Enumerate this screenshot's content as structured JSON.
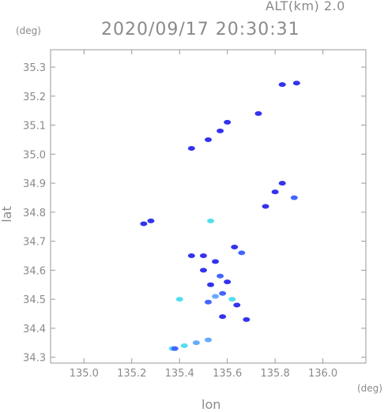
{
  "header": {
    "altitude_label": "ALT(km) 2.0",
    "datetime": "2020/09/17 20:30:31"
  },
  "axes": {
    "x_unit": "(deg)",
    "y_unit": "(deg)"
  },
  "colors": {
    "frame": "#9a9a9a",
    "echo_dark": "#3333ee",
    "echo_mid": "#4466ff",
    "echo_light": "#66aaff",
    "echo_cyan": "#55ddee"
  },
  "chart_data": {
    "type": "scatter",
    "title": "2020/09/17 20:30:31",
    "xlabel": "lon",
    "ylabel": "lat",
    "xlim": [
      134.86,
      136.18
    ],
    "ylim": [
      34.28,
      35.36
    ],
    "x_ticks": [
      135.0,
      135.2,
      135.4,
      135.6,
      135.8,
      136.0
    ],
    "x_tick_labels": [
      "135.0",
      "135.2",
      "135.4",
      "135.6",
      "135.8",
      "136.0"
    ],
    "y_ticks": [
      34.3,
      34.4,
      34.5,
      34.6,
      34.7,
      34.8,
      34.9,
      35.0,
      35.1,
      35.2,
      35.3
    ],
    "y_tick_labels": [
      "34.3",
      "34.4",
      "34.5",
      "34.6",
      "34.7",
      "34.8",
      "34.9",
      "35.0",
      "35.1",
      "35.2",
      "35.3"
    ],
    "grid": false,
    "echoes": [
      {
        "lon": 135.83,
        "lat": 35.24,
        "level": "dark"
      },
      {
        "lon": 135.89,
        "lat": 35.245,
        "level": "dark"
      },
      {
        "lon": 135.73,
        "lat": 35.14,
        "level": "dark"
      },
      {
        "lon": 135.6,
        "lat": 35.11,
        "level": "dark"
      },
      {
        "lon": 135.57,
        "lat": 35.08,
        "level": "dark"
      },
      {
        "lon": 135.52,
        "lat": 35.05,
        "level": "dark"
      },
      {
        "lon": 135.45,
        "lat": 35.02,
        "level": "dark"
      },
      {
        "lon": 135.83,
        "lat": 34.9,
        "level": "dark"
      },
      {
        "lon": 135.8,
        "lat": 34.87,
        "level": "dark"
      },
      {
        "lon": 135.88,
        "lat": 34.85,
        "level": "mid"
      },
      {
        "lon": 135.76,
        "lat": 34.82,
        "level": "dark"
      },
      {
        "lon": 135.28,
        "lat": 34.77,
        "level": "dark"
      },
      {
        "lon": 135.25,
        "lat": 34.76,
        "level": "dark"
      },
      {
        "lon": 135.53,
        "lat": 34.77,
        "level": "cyan"
      },
      {
        "lon": 135.63,
        "lat": 34.68,
        "level": "dark"
      },
      {
        "lon": 135.66,
        "lat": 34.66,
        "level": "mid"
      },
      {
        "lon": 135.45,
        "lat": 34.65,
        "level": "dark"
      },
      {
        "lon": 135.5,
        "lat": 34.65,
        "level": "dark"
      },
      {
        "lon": 135.55,
        "lat": 34.63,
        "level": "dark"
      },
      {
        "lon": 135.5,
        "lat": 34.6,
        "level": "dark"
      },
      {
        "lon": 135.57,
        "lat": 34.58,
        "level": "mid"
      },
      {
        "lon": 135.6,
        "lat": 34.56,
        "level": "dark"
      },
      {
        "lon": 135.53,
        "lat": 34.55,
        "level": "dark"
      },
      {
        "lon": 135.55,
        "lat": 34.51,
        "level": "light"
      },
      {
        "lon": 135.58,
        "lat": 34.52,
        "level": "mid"
      },
      {
        "lon": 135.52,
        "lat": 34.49,
        "level": "mid"
      },
      {
        "lon": 135.62,
        "lat": 34.5,
        "level": "cyan"
      },
      {
        "lon": 135.64,
        "lat": 34.48,
        "level": "dark"
      },
      {
        "lon": 135.4,
        "lat": 34.5,
        "level": "cyan"
      },
      {
        "lon": 135.58,
        "lat": 34.44,
        "level": "dark"
      },
      {
        "lon": 135.68,
        "lat": 34.43,
        "level": "dark"
      },
      {
        "lon": 135.37,
        "lat": 34.33,
        "level": "cyan"
      },
      {
        "lon": 135.42,
        "lat": 34.34,
        "level": "cyan"
      },
      {
        "lon": 135.47,
        "lat": 34.35,
        "level": "light"
      },
      {
        "lon": 135.52,
        "lat": 34.36,
        "level": "light"
      },
      {
        "lon": 135.38,
        "lat": 34.33,
        "level": "mid"
      }
    ]
  }
}
